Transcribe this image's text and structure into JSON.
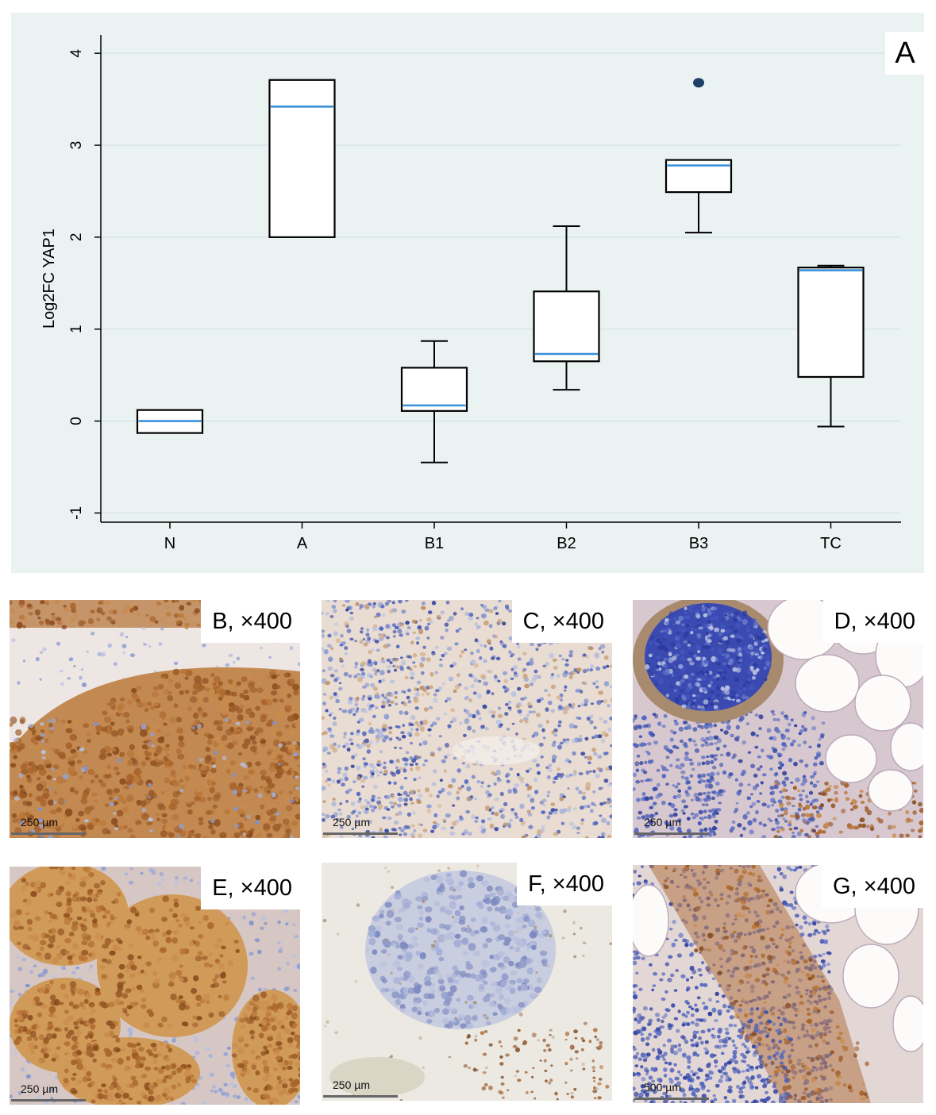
{
  "panel_a_label": "A",
  "chart_data": {
    "type": "box",
    "ylabel": "Log2FC YAP1",
    "xlabel": "",
    "ylim": [
      -1.1,
      4.2
    ],
    "yticks": [
      -1,
      0,
      1,
      2,
      3,
      4
    ],
    "grid": true,
    "categories": [
      "N",
      "A",
      "B1",
      "B2",
      "B3",
      "TC"
    ],
    "boxes": [
      {
        "category": "N",
        "whisker_low": -0.13,
        "q1": -0.13,
        "median": 0.0,
        "q3": 0.12,
        "whisker_high": 0.12,
        "outliers": []
      },
      {
        "category": "A",
        "whisker_low": 2.0,
        "q1": 2.0,
        "median": 3.42,
        "q3": 3.71,
        "whisker_high": 3.71,
        "outliers": []
      },
      {
        "category": "B1",
        "whisker_low": -0.45,
        "q1": 0.11,
        "median": 0.17,
        "q3": 0.58,
        "whisker_high": 0.87,
        "outliers": []
      },
      {
        "category": "B2",
        "whisker_low": 0.34,
        "q1": 0.65,
        "median": 0.73,
        "q3": 1.41,
        "whisker_high": 2.12,
        "outliers": []
      },
      {
        "category": "B3",
        "whisker_low": 2.05,
        "q1": 2.49,
        "median": 2.78,
        "q3": 2.84,
        "whisker_high": 2.84,
        "outliers": [
          3.68
        ]
      },
      {
        "category": "TC",
        "whisker_low": -0.06,
        "q1": 0.48,
        "median": 1.64,
        "q3": 1.67,
        "whisker_high": 1.69,
        "outliers": []
      }
    ]
  },
  "colors": {
    "panel_bg": "#eaf2f2",
    "median": "#3a8fd9",
    "outlier": "#1f3f66",
    "box_fill": "#ffffff",
    "grid": "#d6e6e6"
  },
  "micrographs": [
    {
      "id": "B",
      "label": "B, ×400",
      "scale": "250 µm",
      "stain": "strong"
    },
    {
      "id": "C",
      "label": "C, ×400",
      "scale": "250 µm",
      "stain": "weak"
    },
    {
      "id": "D",
      "label": "D, ×400",
      "scale": "250 µm",
      "stain": "lymph-fat"
    },
    {
      "id": "E",
      "label": "E, ×400",
      "scale": "250 µm",
      "stain": "strong-nested"
    },
    {
      "id": "F",
      "label": "F, ×400",
      "scale": "250 µm",
      "stain": "negative"
    },
    {
      "id": "G",
      "label": "G, ×400",
      "scale": "500 µm",
      "stain": "mixed-fat"
    }
  ]
}
